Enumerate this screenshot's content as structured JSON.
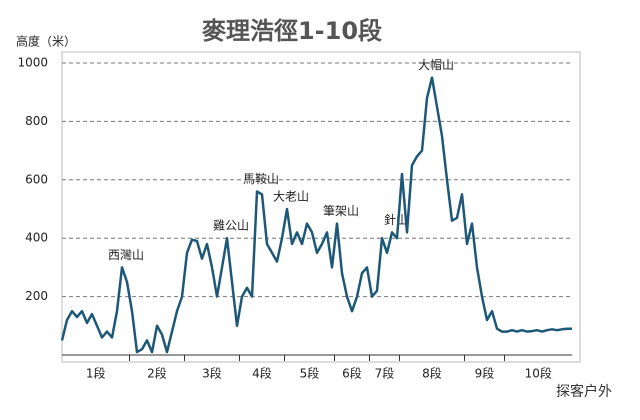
{
  "chart_data": {
    "type": "line",
    "title": "麥理浩徑1-10段",
    "y_label": "高度（米）",
    "color": "#1d5878",
    "ylim": [
      0,
      1000
    ],
    "yticks": [
      200,
      400,
      600,
      800,
      1000
    ],
    "grid": true,
    "watermark": "探客户外",
    "stages": [
      {
        "label": "1段",
        "peak_label": "西灣山",
        "values": [
          50,
          120,
          150,
          130,
          150,
          110,
          140,
          100,
          60,
          80,
          60,
          150,
          300,
          250
        ]
      },
      {
        "label": "2段",
        "values": [
          150,
          10,
          20,
          50,
          10,
          100,
          70,
          10,
          80,
          150,
          200
        ]
      },
      {
        "label": "3段",
        "peak_label": "雞公山",
        "values": [
          350,
          395,
          390,
          330,
          380,
          300,
          200,
          300,
          400,
          250,
          100
        ]
      },
      {
        "label": "4段",
        "peak_label": "馬鞍山",
        "values": [
          200,
          230,
          200,
          560,
          550,
          380,
          350,
          320,
          400
        ]
      },
      {
        "label": "5段",
        "peak_label": "大老山",
        "values": [
          500,
          380,
          420,
          380,
          450,
          420,
          350,
          380,
          420,
          300
        ]
      },
      {
        "label": "6段",
        "peak_label": "筆架山",
        "values": [
          450,
          280,
          200,
          150,
          200,
          280,
          300
        ]
      },
      {
        "label": "7段",
        "peak_label": "針山",
        "values": [
          200,
          220,
          400,
          350,
          420,
          400
        ]
      },
      {
        "label": "8段",
        "peak_label": "大帽山",
        "values": [
          620,
          420,
          650,
          680,
          700,
          880,
          950,
          850,
          750,
          600,
          460,
          470,
          550
        ]
      },
      {
        "label": "9段",
        "values": [
          380,
          450,
          300,
          200,
          120,
          150,
          90,
          80
        ]
      },
      {
        "label": "10段",
        "values": [
          80,
          85,
          80,
          85,
          80,
          82,
          85,
          80,
          85,
          88,
          85,
          88,
          90,
          90
        ]
      }
    ]
  }
}
